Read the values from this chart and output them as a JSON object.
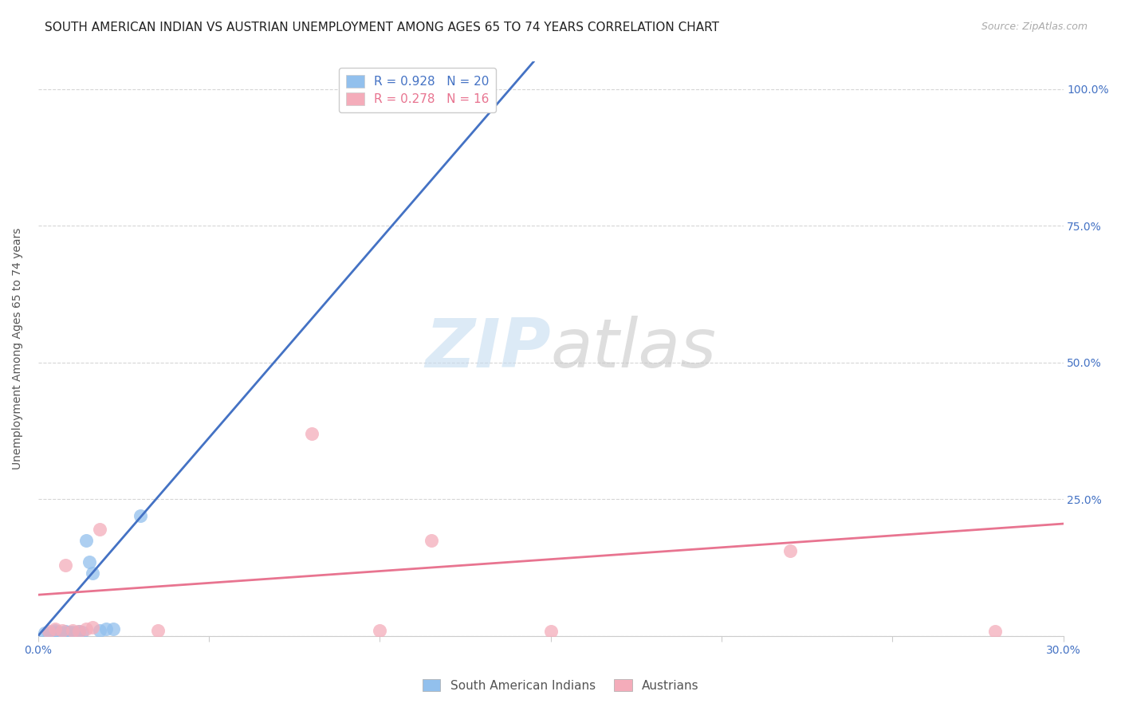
{
  "title": "SOUTH AMERICAN INDIAN VS AUSTRIAN UNEMPLOYMENT AMONG AGES 65 TO 74 YEARS CORRELATION CHART",
  "source": "Source: ZipAtlas.com",
  "ylabel": "Unemployment Among Ages 65 to 74 years",
  "xlim": [
    0.0,
    0.3
  ],
  "ylim": [
    0.0,
    1.05
  ],
  "xticks": [
    0.0,
    0.05,
    0.1,
    0.15,
    0.2,
    0.25,
    0.3
  ],
  "xticklabels": [
    "0.0%",
    "",
    "",
    "",
    "",
    "",
    "30.0%"
  ],
  "yticks": [
    0.0,
    0.25,
    0.5,
    0.75,
    1.0
  ],
  "yticklabels": [
    "",
    "25.0%",
    "50.0%",
    "75.0%",
    "100.0%"
  ],
  "blue_scatter_x": [
    0.002,
    0.003,
    0.004,
    0.005,
    0.005,
    0.006,
    0.007,
    0.008,
    0.009,
    0.01,
    0.011,
    0.012,
    0.013,
    0.014,
    0.015,
    0.016,
    0.018,
    0.02,
    0.022,
    0.03
  ],
  "blue_scatter_y": [
    0.005,
    0.006,
    0.005,
    0.007,
    0.01,
    0.006,
    0.005,
    0.008,
    0.007,
    0.007,
    0.006,
    0.008,
    0.007,
    0.175,
    0.135,
    0.115,
    0.01,
    0.013,
    0.012,
    0.22
  ],
  "pink_scatter_x": [
    0.003,
    0.005,
    0.007,
    0.008,
    0.01,
    0.012,
    0.014,
    0.016,
    0.018,
    0.035,
    0.08,
    0.1,
    0.115,
    0.15,
    0.22,
    0.28
  ],
  "pink_scatter_y": [
    0.008,
    0.012,
    0.01,
    0.13,
    0.01,
    0.008,
    0.012,
    0.015,
    0.195,
    0.01,
    0.37,
    0.01,
    0.175,
    0.008,
    0.155,
    0.008
  ],
  "blue_line_x": [
    0.0,
    0.145
  ],
  "blue_line_y": [
    0.0,
    1.05
  ],
  "pink_line_x": [
    0.0,
    0.3
  ],
  "pink_line_y": [
    0.075,
    0.205
  ],
  "blue_R": "0.928",
  "blue_N": "20",
  "pink_R": "0.278",
  "pink_N": "16",
  "blue_color": "#92C0ED",
  "blue_line_color": "#4472C4",
  "pink_color": "#F4ACBA",
  "pink_line_color": "#E87490",
  "legend_label_blue": "South American Indians",
  "legend_label_pink": "Austrians",
  "title_fontsize": 11,
  "axis_label_fontsize": 10,
  "tick_fontsize": 10,
  "legend_fontsize": 11,
  "watermark_zip": "ZIP",
  "watermark_atlas": "atlas",
  "background_color": "#ffffff",
  "grid_color": "#cccccc"
}
